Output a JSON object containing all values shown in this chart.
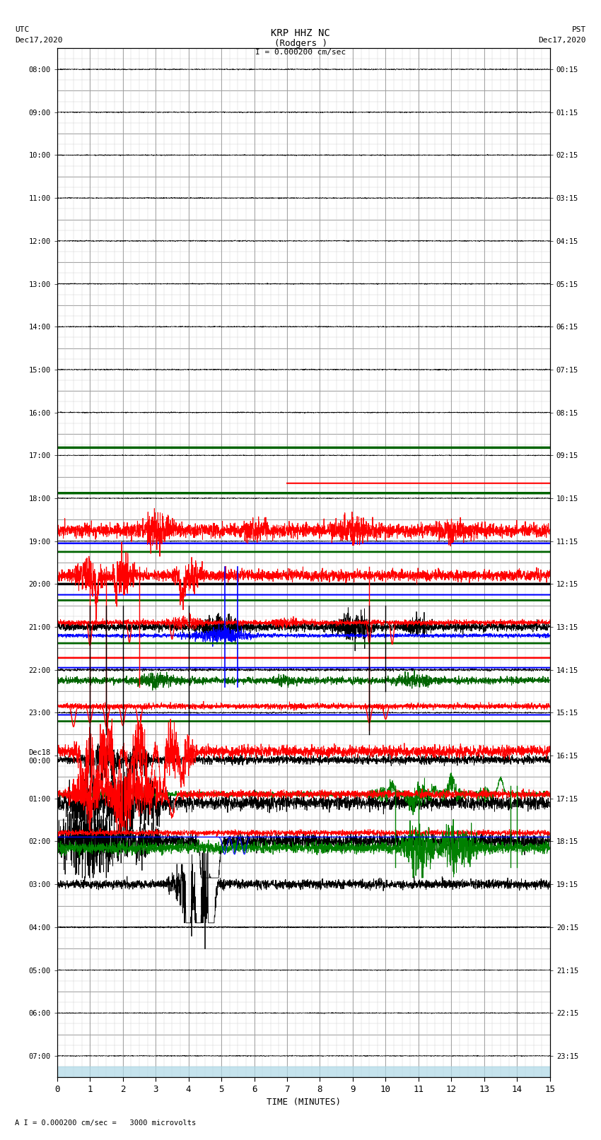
{
  "title_line1": "KRP HHZ NC",
  "title_line2": "(Rodgers )",
  "scale_label": "I = 0.000200 cm/sec",
  "footer_label": "A I = 0.000200 cm/sec =   3000 microvolts",
  "utc_label": "UTC",
  "utc_date": "Dec17,2020",
  "pst_label": "PST",
  "pst_date": "Dec17,2020",
  "xlabel": "TIME (MINUTES)",
  "xlim": [
    0,
    15
  ],
  "n_rows": 24,
  "figsize": [
    8.5,
    16.13
  ],
  "dpi": 100,
  "bg_color": "#ffffff",
  "grid_major_color": "#888888",
  "grid_minor_color": "#cccccc",
  "utc_times": [
    "08:00",
    "09:00",
    "10:00",
    "11:00",
    "12:00",
    "13:00",
    "14:00",
    "15:00",
    "16:00",
    "17:00",
    "18:00",
    "19:00",
    "20:00",
    "21:00",
    "22:00",
    "23:00",
    "Dec18\n00:00",
    "01:00",
    "02:00",
    "03:00",
    "04:00",
    "05:00",
    "06:00",
    "07:00"
  ],
  "pst_times": [
    "00:15",
    "01:15",
    "02:15",
    "03:15",
    "04:15",
    "05:15",
    "06:15",
    "07:15",
    "08:15",
    "09:15",
    "10:15",
    "11:15",
    "12:15",
    "13:15",
    "14:15",
    "15:15",
    "16:15",
    "17:15",
    "18:15",
    "19:15",
    "20:15",
    "21:15",
    "22:15",
    "23:15"
  ],
  "bottom_bar_color": "#add8e6"
}
